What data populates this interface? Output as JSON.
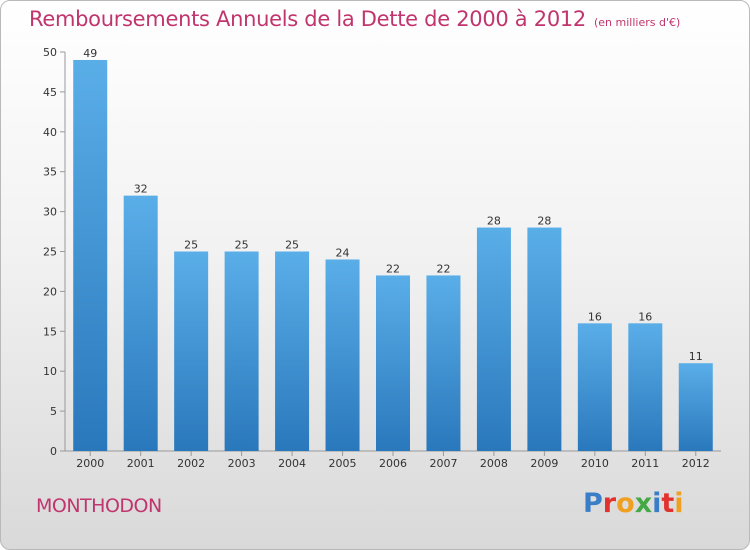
{
  "header": {
    "title": "Remboursements Annuels de la Dette de 2000 à 2012",
    "subtitle": "(en milliers d'€)"
  },
  "commune": "MONTHODON",
  "logo": {
    "text": "Proxiti",
    "letter_colors": [
      "#3a7ec8",
      "#e2322f",
      "#f0a021",
      "#44a844",
      "#3a7ec8",
      "#e2322f",
      "#f0a021"
    ]
  },
  "colors": {
    "bar_top": "#5aaee8",
    "bar_bottom": "#2a78bc",
    "accent": "#c0356d"
  },
  "chart_data": {
    "type": "bar",
    "categories": [
      "2000",
      "2001",
      "2002",
      "2003",
      "2004",
      "2005",
      "2006",
      "2007",
      "2008",
      "2009",
      "2010",
      "2011",
      "2012"
    ],
    "values": [
      49,
      32,
      25,
      25,
      25,
      24,
      22,
      22,
      28,
      28,
      16,
      16,
      11
    ],
    "ylim": [
      0,
      50
    ],
    "yticks": [
      0,
      5,
      10,
      15,
      20,
      25,
      30,
      35,
      40,
      45,
      50
    ],
    "grid": false
  }
}
